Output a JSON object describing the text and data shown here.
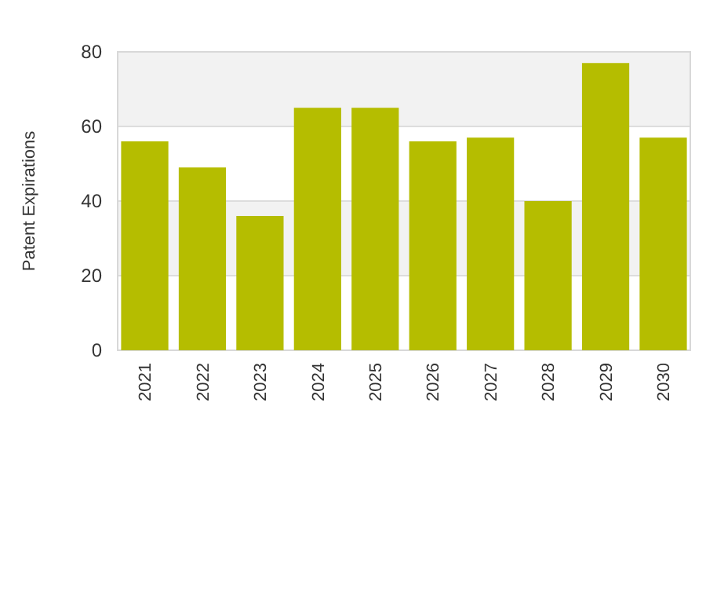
{
  "chart_data": {
    "type": "bar",
    "ylabel": "Patent Expirations",
    "categories": [
      "2021",
      "2022",
      "2023",
      "2024",
      "2025",
      "2026",
      "2027",
      "2028",
      "2029",
      "2030"
    ],
    "values": [
      56,
      49,
      36,
      65,
      65,
      56,
      57,
      40,
      77,
      57
    ],
    "color": "#b5bd00",
    "ylim": [
      0,
      80
    ],
    "yticks": [
      0,
      20,
      40,
      60,
      80
    ],
    "grid": "y"
  }
}
